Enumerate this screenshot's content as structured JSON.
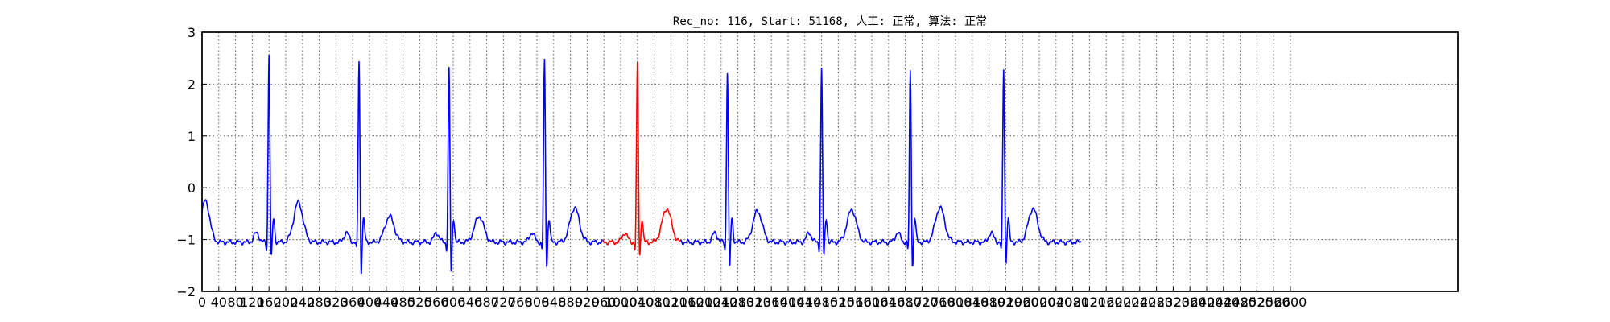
{
  "chart_data": {
    "type": "line",
    "title": "Rec_no: 116, Start: 51168, 人工: 正常, 算法: 正常",
    "xlabel": "",
    "ylabel": "",
    "xlim": [
      0,
      3000
    ],
    "ylim": [
      -2,
      3
    ],
    "grid": true,
    "yticks": [
      3,
      2,
      1,
      0,
      -1,
      -2
    ],
    "ytick_labels": [
      "3",
      "2",
      "1",
      "0",
      "−1",
      "−2"
    ],
    "xtick_step": 40,
    "xticks_range": [
      0,
      2600
    ],
    "baseline": -1.05,
    "beats": [
      {
        "r_x": 160,
        "r_peak": 2.6,
        "s_min": -1.55,
        "t_x": 230,
        "t_peak": -0.28,
        "highlight": false
      },
      {
        "r_x": 375,
        "r_peak": 2.45,
        "s_min": -1.85,
        "t_x": 448,
        "t_peak": -0.55,
        "highlight": false
      },
      {
        "r_x": 590,
        "r_peak": 2.3,
        "s_min": -1.85,
        "t_x": 662,
        "t_peak": -0.55,
        "highlight": false
      },
      {
        "r_x": 818,
        "r_peak": 2.45,
        "s_min": -1.7,
        "t_x": 890,
        "t_peak": -0.38,
        "highlight": false
      },
      {
        "r_x": 1040,
        "r_peak": 2.4,
        "s_min": -1.5,
        "t_x": 1110,
        "t_peak": -0.4,
        "highlight": true
      },
      {
        "r_x": 1255,
        "r_peak": 2.25,
        "s_min": -1.75,
        "t_x": 1327,
        "t_peak": -0.45,
        "highlight": false
      },
      {
        "r_x": 1480,
        "r_peak": 2.3,
        "s_min": -1.5,
        "t_x": 1552,
        "t_peak": -0.42,
        "highlight": false
      },
      {
        "r_x": 1692,
        "r_peak": 2.25,
        "s_min": -1.7,
        "t_x": 1763,
        "t_peak": -0.38,
        "highlight": false
      },
      {
        "r_x": 1915,
        "r_peak": 2.3,
        "s_min": -1.65,
        "t_x": 1985,
        "t_peak": -0.4,
        "highlight": false
      }
    ],
    "trace_end_x": 2100,
    "series": [
      {
        "color": "#0000ff"
      },
      {
        "color": "#ff0000"
      }
    ]
  }
}
